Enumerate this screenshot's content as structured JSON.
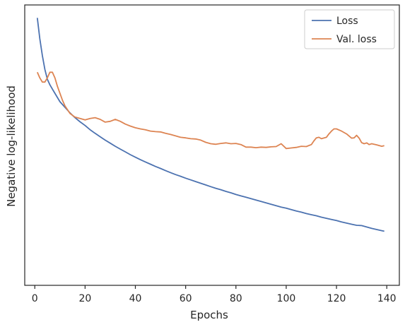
{
  "chart_data": {
    "type": "line",
    "xlabel": "Epochs",
    "ylabel": "Negative log-likelihood",
    "xlim": [
      -4,
      145
    ],
    "ylim": [
      0,
      100
    ],
    "xticks": [
      0,
      20,
      40,
      60,
      80,
      100,
      120,
      140
    ],
    "yticks_visible": false,
    "grid": false,
    "legend_position": "top-right",
    "series": [
      {
        "name": "Loss",
        "color": "#4c72b0",
        "points": [
          [
            1,
            95.4
          ],
          [
            2,
            88
          ],
          [
            3,
            82
          ],
          [
            4,
            77
          ],
          [
            5,
            73.5
          ],
          [
            6,
            71.5
          ],
          [
            7,
            70
          ],
          [
            8,
            68.5
          ],
          [
            9,
            67
          ],
          [
            10,
            65.5
          ],
          [
            12,
            63.5
          ],
          [
            14,
            61.5
          ],
          [
            16,
            59.8
          ],
          [
            18,
            58.3
          ],
          [
            20,
            57
          ],
          [
            22,
            55.5
          ],
          [
            24,
            54.2
          ],
          [
            26,
            53
          ],
          [
            28,
            51.8
          ],
          [
            30,
            50.7
          ],
          [
            32,
            49.6
          ],
          [
            34,
            48.6
          ],
          [
            36,
            47.6
          ],
          [
            38,
            46.6
          ],
          [
            40,
            45.7
          ],
          [
            42,
            44.8
          ],
          [
            44,
            44
          ],
          [
            46,
            43.2
          ],
          [
            48,
            42.4
          ],
          [
            50,
            41.7
          ],
          [
            52,
            40.9
          ],
          [
            54,
            40.2
          ],
          [
            56,
            39.5
          ],
          [
            58,
            38.9
          ],
          [
            60,
            38.2
          ],
          [
            62,
            37.6
          ],
          [
            64,
            37
          ],
          [
            66,
            36.4
          ],
          [
            68,
            35.8
          ],
          [
            70,
            35.2
          ],
          [
            72,
            34.6
          ],
          [
            74,
            34.1
          ],
          [
            76,
            33.5
          ],
          [
            78,
            33
          ],
          [
            80,
            32.4
          ],
          [
            82,
            31.9
          ],
          [
            84,
            31.4
          ],
          [
            86,
            30.9
          ],
          [
            88,
            30.4
          ],
          [
            90,
            29.9
          ],
          [
            92,
            29.4
          ],
          [
            94,
            28.9
          ],
          [
            96,
            28.4
          ],
          [
            98,
            27.9
          ],
          [
            100,
            27.5
          ],
          [
            102,
            27
          ],
          [
            104,
            26.5
          ],
          [
            106,
            26.1
          ],
          [
            108,
            25.6
          ],
          [
            110,
            25.2
          ],
          [
            112,
            24.8
          ],
          [
            114,
            24.3
          ],
          [
            116,
            23.9
          ],
          [
            118,
            23.5
          ],
          [
            120,
            23.1
          ],
          [
            122,
            22.6
          ],
          [
            124,
            22.2
          ],
          [
            126,
            21.8
          ],
          [
            128,
            21.4
          ],
          [
            130,
            21.3
          ],
          [
            132,
            20.8
          ],
          [
            134,
            20.3
          ],
          [
            136,
            19.9
          ],
          [
            138,
            19.5
          ],
          [
            139,
            19.3
          ]
        ]
      },
      {
        "name": "Val. loss",
        "color": "#dd8452",
        "points": [
          [
            1,
            76
          ],
          [
            2,
            74
          ],
          [
            3,
            72.5
          ],
          [
            4,
            72.5
          ],
          [
            5,
            74
          ],
          [
            6,
            76
          ],
          [
            7,
            76
          ],
          [
            8,
            74
          ],
          [
            9,
            71
          ],
          [
            10,
            68.5
          ],
          [
            11,
            66
          ],
          [
            12,
            64
          ],
          [
            14,
            61.3
          ],
          [
            16,
            60
          ],
          [
            18,
            59.5
          ],
          [
            20,
            59
          ],
          [
            22,
            59.5
          ],
          [
            24,
            59.8
          ],
          [
            26,
            59.2
          ],
          [
            28,
            58.2
          ],
          [
            30,
            58.5
          ],
          [
            32,
            59.2
          ],
          [
            34,
            58.5
          ],
          [
            36,
            57.5
          ],
          [
            38,
            56.8
          ],
          [
            40,
            56.2
          ],
          [
            42,
            55.8
          ],
          [
            44,
            55.5
          ],
          [
            46,
            55
          ],
          [
            48,
            54.8
          ],
          [
            50,
            54.7
          ],
          [
            52,
            54.2
          ],
          [
            54,
            53.8
          ],
          [
            56,
            53.3
          ],
          [
            58,
            52.8
          ],
          [
            60,
            52.6
          ],
          [
            62,
            52.3
          ],
          [
            64,
            52.2
          ],
          [
            66,
            51.8
          ],
          [
            68,
            51
          ],
          [
            70,
            50.5
          ],
          [
            72,
            50.3
          ],
          [
            74,
            50.6
          ],
          [
            76,
            50.8
          ],
          [
            78,
            50.5
          ],
          [
            80,
            50.6
          ],
          [
            82,
            50.2
          ],
          [
            84,
            49.3
          ],
          [
            86,
            49.3
          ],
          [
            88,
            49.1
          ],
          [
            90,
            49.3
          ],
          [
            92,
            49.2
          ],
          [
            94,
            49.4
          ],
          [
            96,
            49.5
          ],
          [
            98,
            50.5
          ],
          [
            100,
            48.8
          ],
          [
            102,
            49
          ],
          [
            104,
            49.2
          ],
          [
            106,
            49.6
          ],
          [
            108,
            49.5
          ],
          [
            110,
            50.2
          ],
          [
            111,
            51.5
          ],
          [
            112,
            52.6
          ],
          [
            113,
            52.8
          ],
          [
            114,
            52.3
          ],
          [
            116,
            52.8
          ],
          [
            117,
            54
          ],
          [
            118,
            55
          ],
          [
            119,
            55.8
          ],
          [
            120,
            55.8
          ],
          [
            122,
            55
          ],
          [
            124,
            54
          ],
          [
            126,
            52.5
          ],
          [
            127,
            52.6
          ],
          [
            128,
            53.5
          ],
          [
            129,
            52.5
          ],
          [
            130,
            50.9
          ],
          [
            131,
            50.5
          ],
          [
            132,
            50.8
          ],
          [
            133,
            50.2
          ],
          [
            134,
            50.5
          ],
          [
            136,
            50.1
          ],
          [
            138,
            49.6
          ],
          [
            139,
            49.8
          ]
        ]
      }
    ]
  }
}
